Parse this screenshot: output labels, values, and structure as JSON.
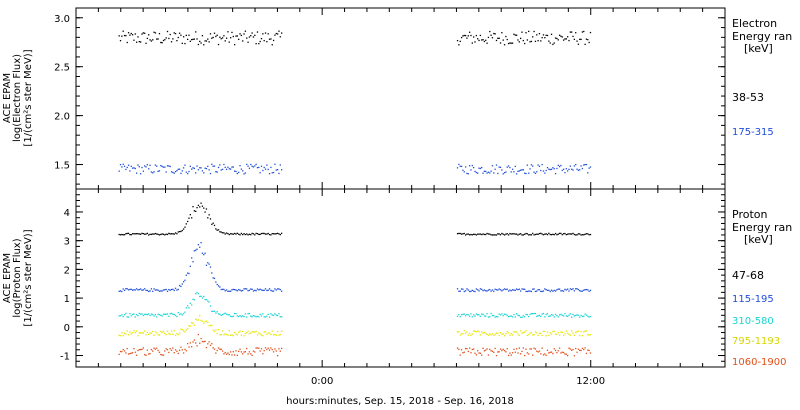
{
  "xlabel": "hours:minutes, Sep. 15, 2018 - Sep. 16, 2018",
  "x_ticks": [
    {
      "hour": 0,
      "label": "0:00"
    },
    {
      "hour": 12,
      "label": "12:00"
    }
  ],
  "x_range_hours": [
    -11.0,
    18.0
  ],
  "chart_data": [
    {
      "type": "scatter",
      "panel": "electron",
      "ylabel_lines": [
        "ACE EPAM",
        "log(Electron Flux)",
        "[1/(cm²s ster MeV)]"
      ],
      "ylim": [
        1.25,
        3.1
      ],
      "yticks": [
        1.5,
        2.0,
        2.5,
        3.0
      ],
      "ytick_labels": [
        "1.5",
        "2.0",
        "2.5",
        "3.0"
      ],
      "legend_title": [
        "Electron",
        "Energy ran"
      ],
      "legend_unit": "[keV]",
      "data_gaps_hours": [
        [
          -1.8,
          6.0
        ]
      ],
      "series": [
        {
          "name": "38-53",
          "color": "#000000",
          "baseline": 2.8,
          "noise": 0.07
        },
        {
          "name": "175-315",
          "color": "#1f4fd8",
          "baseline": 1.46,
          "noise": 0.05
        }
      ]
    },
    {
      "type": "scatter",
      "panel": "proton",
      "ylabel_lines": [
        "ACE EPAM",
        "log(Proton Flux)",
        "[1/(cm²s ster MeV)]"
      ],
      "ylim": [
        -1.4,
        4.8
      ],
      "yticks": [
        -1,
        0,
        1,
        2,
        3,
        4
      ],
      "ytick_labels": [
        "-1",
        "0",
        "1",
        "2",
        "3",
        "4"
      ],
      "legend_title": [
        "Proton",
        "Energy ran"
      ],
      "legend_unit": "[keV]",
      "data_gaps_hours": [
        [
          -1.8,
          6.0
        ]
      ],
      "series": [
        {
          "name": "47-68",
          "color": "#000000",
          "baseline": 3.25,
          "noise": 0.03,
          "peak": 4.3
        },
        {
          "name": "115-195",
          "color": "#1f4fd8",
          "baseline": 1.3,
          "noise": 0.05,
          "peak": 2.8
        },
        {
          "name": "310-580",
          "color": "#1ad4d4",
          "baseline": 0.42,
          "noise": 0.07,
          "peak": 1.1
        },
        {
          "name": "795-1193",
          "color": "#e6e600",
          "baseline": -0.2,
          "noise": 0.09,
          "peak": 0.3
        },
        {
          "name": "1060-1900",
          "color": "#e0501a",
          "baseline": -0.85,
          "noise": 0.14,
          "peak": -0.45
        }
      ]
    }
  ]
}
